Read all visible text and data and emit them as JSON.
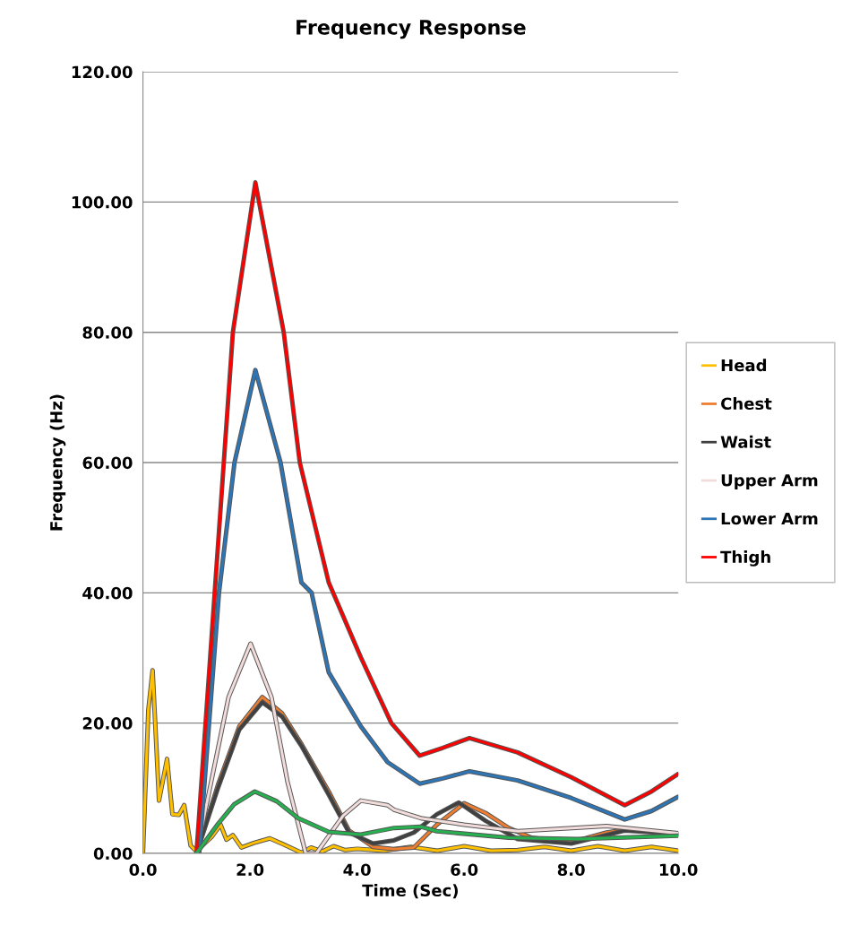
{
  "chart_data": {
    "type": "line",
    "title": "Frequency Response",
    "xlabel": "Time (Sec)",
    "ylabel": "Frequency (Hz)",
    "xlim": [
      0,
      10
    ],
    "xticks": [
      {
        "value": 0,
        "label": "0.0"
      },
      {
        "value": 2,
        "label": "2.0"
      },
      {
        "value": 4,
        "label": "4.0"
      },
      {
        "value": 6,
        "label": "6.0"
      },
      {
        "value": 8,
        "label": "8.0"
      },
      {
        "value": 10,
        "label": "10.0"
      }
    ],
    "ylim": [
      0,
      120
    ],
    "yticks": [
      {
        "value": 0,
        "label": "0.00"
      },
      {
        "value": 20,
        "label": "20.00"
      },
      {
        "value": 40,
        "label": "40.00"
      },
      {
        "value": 60,
        "label": "60.00"
      },
      {
        "value": 80,
        "label": "80.00"
      },
      {
        "value": 100,
        "label": "100.00"
      },
      {
        "value": 120,
        "label": "120.00"
      }
    ],
    "grid": "y",
    "legend": "right",
    "marker": "none",
    "line_style": "solid",
    "series": [
      {
        "name": "Head",
        "color": "#ffc000",
        "x": [
          0,
          0.1,
          0.18,
          0.3,
          0.45,
          0.55,
          0.67,
          0.77,
          0.89,
          1.0,
          1.15,
          1.29,
          1.45,
          1.56,
          1.68,
          1.84,
          2.07,
          2.37,
          2.62,
          2.96,
          3.14,
          3.35,
          3.56,
          3.78,
          4.0,
          4.5,
          5.0,
          5.5,
          6.0,
          6.5,
          7.0,
          7.5,
          8.0,
          8.5,
          9.0,
          9.5,
          10.0
        ],
        "values": [
          0,
          22,
          28.1,
          8.1,
          14.5,
          6.0,
          5.9,
          7.4,
          1.2,
          0.3,
          1.5,
          2.6,
          4.4,
          2.1,
          2.8,
          0.9,
          1.6,
          2.3,
          1.4,
          0.1,
          0.9,
          0.3,
          1.1,
          0.5,
          0.7,
          0.4,
          1.0,
          0.4,
          1.1,
          0.4,
          0.5,
          1.0,
          0.4,
          1.1,
          0.4,
          1.0,
          0.4
        ]
      },
      {
        "name": "Chest",
        "color": "#ed7d31",
        "x": [
          1.0,
          1.4,
          1.8,
          2.23,
          2.6,
          2.96,
          3.47,
          3.85,
          4.3,
          4.69,
          5.06,
          5.49,
          6.0,
          6.4,
          6.83,
          7.26,
          7.99,
          8.66,
          9.09,
          10.0
        ],
        "values": [
          0,
          10.5,
          19.5,
          24.0,
          21.5,
          16.8,
          9.5,
          3.5,
          1.0,
          0.65,
          0.9,
          4.4,
          7.7,
          6.2,
          3.9,
          2.4,
          1.7,
          3.2,
          3.7,
          2.9
        ]
      },
      {
        "name": "Waist",
        "color": "#404040",
        "x": [
          1.0,
          1.4,
          1.8,
          2.23,
          2.6,
          2.96,
          3.47,
          3.85,
          4.3,
          4.69,
          5.06,
          5.49,
          5.9,
          6.4,
          7.0,
          8.0,
          9.0,
          10.0
        ],
        "values": [
          0,
          10.0,
          19.0,
          23.2,
          21.0,
          16.5,
          9.0,
          3.2,
          1.5,
          2.0,
          3.2,
          6.0,
          7.8,
          5.0,
          2.2,
          1.5,
          3.5,
          3.0
        ]
      },
      {
        "name": "Upper Arm",
        "color": "#f2dcdb",
        "x": [
          1.0,
          1.3,
          1.6,
          2.01,
          2.4,
          2.7,
          3.04,
          3.24,
          3.74,
          4.07,
          4.57,
          4.69,
          5.19,
          6.0,
          7.01,
          8.66,
          10.0
        ],
        "values": [
          0,
          12.0,
          24.0,
          32.2,
          24.0,
          11.0,
          0,
          0,
          5.8,
          8.1,
          7.4,
          6.7,
          5.4,
          4.4,
          3.4,
          4.2,
          3.1
        ]
      },
      {
        "name": "Lower Arm",
        "color": "#2e75b6",
        "x": [
          1.05,
          1.42,
          1.71,
          2.1,
          2.57,
          2.96,
          3.15,
          3.47,
          4.07,
          4.57,
          5.17,
          5.6,
          6.1,
          7.0,
          8.0,
          9.0,
          9.5,
          10.0
        ],
        "values": [
          0,
          40,
          60,
          74.2,
          60,
          41.6,
          40,
          27.8,
          19.5,
          14.0,
          10.7,
          11.5,
          12.6,
          11.2,
          8.5,
          5.2,
          6.5,
          8.7
        ]
      },
      {
        "name": "Thigh",
        "color": "#ff0000",
        "x": [
          1.0,
          1.34,
          1.51,
          1.68,
          2.1,
          2.63,
          2.93,
          3.47,
          4.07,
          4.64,
          5.17,
          5.6,
          6.1,
          7.0,
          8.0,
          9.0,
          9.5,
          10.0
        ],
        "values": [
          0,
          40,
          60,
          80,
          103,
          80,
          60,
          41.6,
          30.1,
          20.0,
          15.0,
          16.2,
          17.7,
          15.5,
          11.7,
          7.4,
          9.5,
          12.2
        ]
      },
      {
        "color": "#27b050",
        "x": [
          1.0,
          1.4,
          1.7,
          2.09,
          2.5,
          2.9,
          3.47,
          4.07,
          4.69,
          5.19,
          5.49,
          6.83,
          8.11,
          10.0
        ],
        "values": [
          0,
          4.5,
          7.5,
          9.5,
          8.0,
          5.4,
          3.3,
          2.9,
          3.9,
          4.1,
          3.4,
          2.4,
          2.2,
          2.7
        ]
      }
    ]
  }
}
